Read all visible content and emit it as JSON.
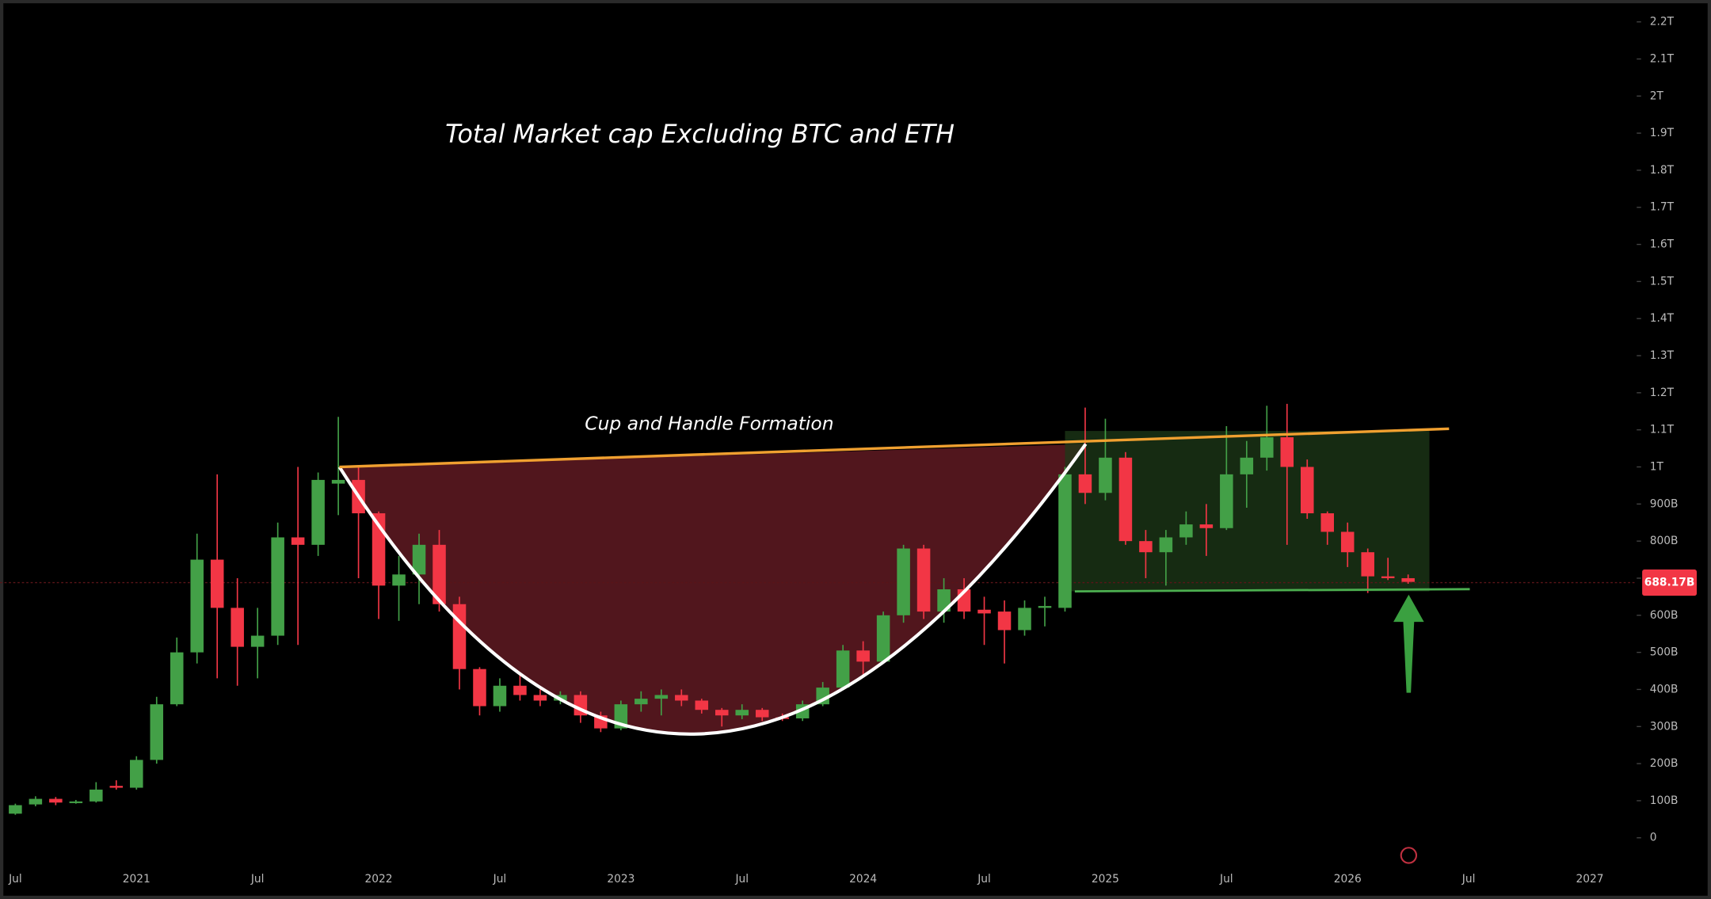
{
  "chart_data": {
    "type": "candlestick",
    "title": "Total Market cap Excluding BTC and ETH",
    "annotation": "Cup and Handle Formation",
    "categories": [
      "Jul",
      null,
      null,
      null,
      null,
      null,
      "2021",
      null,
      null,
      null,
      null,
      null,
      "Jul",
      null,
      null,
      null,
      null,
      null,
      "2022",
      null,
      null,
      null,
      null,
      null,
      "Jul",
      null,
      null,
      null,
      null,
      null,
      "2023",
      null,
      null,
      null,
      null,
      null,
      "Jul",
      null,
      null,
      null,
      null,
      null,
      "2024",
      null,
      null,
      null,
      null,
      null,
      "Jul",
      null,
      null,
      null,
      null,
      null,
      "2025",
      null,
      null,
      null,
      null,
      null,
      "Jul",
      null,
      null,
      null,
      null,
      null,
      "2026",
      null,
      null,
      null,
      null,
      null,
      "Jul",
      null,
      null,
      null,
      null,
      null,
      "2027"
    ],
    "open": [
      65,
      90,
      105,
      95,
      98,
      140,
      135,
      210,
      360,
      500,
      750,
      620,
      515,
      545,
      810,
      790,
      955,
      965,
      875,
      680,
      710,
      790,
      630,
      455,
      355,
      410,
      385,
      370,
      385,
      330,
      295,
      360,
      375,
      385,
      370,
      345,
      330,
      345,
      325,
      322,
      360,
      405,
      505,
      475,
      600,
      780,
      610,
      670,
      615,
      610,
      560,
      620,
      620,
      980,
      930,
      1025,
      800,
      770,
      810,
      845,
      835,
      980,
      1025,
      1080,
      1000,
      875,
      825,
      770,
      705,
      700,
      null,
      null,
      null,
      null,
      null,
      null,
      null,
      null,
      null
    ],
    "high": [
      92,
      112,
      110,
      102,
      150,
      155,
      220,
      380,
      540,
      820,
      980,
      700,
      620,
      850,
      1000,
      985,
      1135,
      1000,
      880,
      760,
      820,
      830,
      650,
      460,
      430,
      440,
      400,
      395,
      395,
      340,
      370,
      395,
      400,
      400,
      375,
      350,
      360,
      350,
      335,
      370,
      420,
      520,
      530,
      610,
      790,
      790,
      700,
      700,
      650,
      640,
      640,
      650,
      1000,
      1160,
      1130,
      1040,
      830,
      830,
      880,
      900,
      1110,
      1070,
      1165,
      1170,
      1020,
      880,
      850,
      780,
      755,
      710,
      null,
      null,
      null,
      null,
      null,
      null,
      null,
      null,
      null
    ],
    "low": [
      62,
      85,
      88,
      92,
      95,
      130,
      130,
      200,
      355,
      470,
      430,
      410,
      430,
      520,
      520,
      760,
      870,
      700,
      590,
      585,
      630,
      610,
      400,
      330,
      340,
      370,
      355,
      360,
      310,
      285,
      290,
      340,
      330,
      355,
      335,
      300,
      320,
      315,
      315,
      315,
      355,
      400,
      440,
      470,
      580,
      590,
      580,
      590,
      520,
      470,
      545,
      570,
      610,
      900,
      910,
      790,
      700,
      680,
      790,
      760,
      830,
      890,
      990,
      790,
      860,
      790,
      730,
      660,
      695,
      685,
      null,
      null,
      null,
      null,
      null,
      null,
      null,
      null,
      null
    ],
    "close": [
      88,
      105,
      95,
      98,
      130,
      135,
      210,
      360,
      500,
      750,
      620,
      515,
      545,
      810,
      790,
      965,
      965,
      875,
      680,
      710,
      790,
      630,
      455,
      355,
      410,
      385,
      370,
      385,
      330,
      295,
      360,
      375,
      385,
      370,
      345,
      330,
      345,
      325,
      322,
      360,
      405,
      505,
      475,
      600,
      780,
      610,
      670,
      610,
      605,
      560,
      620,
      625,
      980,
      930,
      1025,
      800,
      770,
      810,
      845,
      835,
      980,
      1025,
      1080,
      1000,
      875,
      825,
      770,
      705,
      700,
      690,
      null,
      null,
      null,
      null,
      null,
      null,
      null,
      null,
      null
    ],
    "up_color": "#43a047",
    "down_color": "#f23645",
    "ylim": [
      -65,
      2259
    ],
    "yticks": [
      0,
      {
        "value": 100,
        "label": "100B"
      },
      {
        "value": 200,
        "label": "200B"
      },
      {
        "value": 300,
        "label": "300B"
      },
      {
        "value": 400,
        "label": "400B"
      },
      {
        "value": 500,
        "label": "500B"
      },
      {
        "value": 600,
        "label": "600B"
      },
      {
        "value": 700,
        "label": "700B"
      },
      {
        "value": 800,
        "label": "800B"
      },
      {
        "value": 900,
        "label": "900B"
      },
      {
        "value": 1000,
        "label": "1T"
      },
      {
        "value": 1100,
        "label": "1.1T"
      },
      {
        "value": 1200,
        "label": "1.2T"
      },
      {
        "value": 1300,
        "label": "1.3T"
      },
      {
        "value": 1400,
        "label": "1.4T"
      },
      {
        "value": 1500,
        "label": "1.5T"
      },
      {
        "value": 1600,
        "label": "1.6T"
      },
      {
        "value": 1700,
        "label": "1.7T"
      },
      {
        "value": 1800,
        "label": "1.8T"
      },
      {
        "value": 1900,
        "label": "1.9T"
      },
      {
        "value": 2000,
        "label": "2T"
      },
      {
        "value": 2100,
        "label": "2.1T"
      },
      {
        "value": 2200,
        "label": "2.2T"
      }
    ],
    "current_price": {
      "value": 688,
      "label": "688.17B"
    },
    "grid": false
  }
}
